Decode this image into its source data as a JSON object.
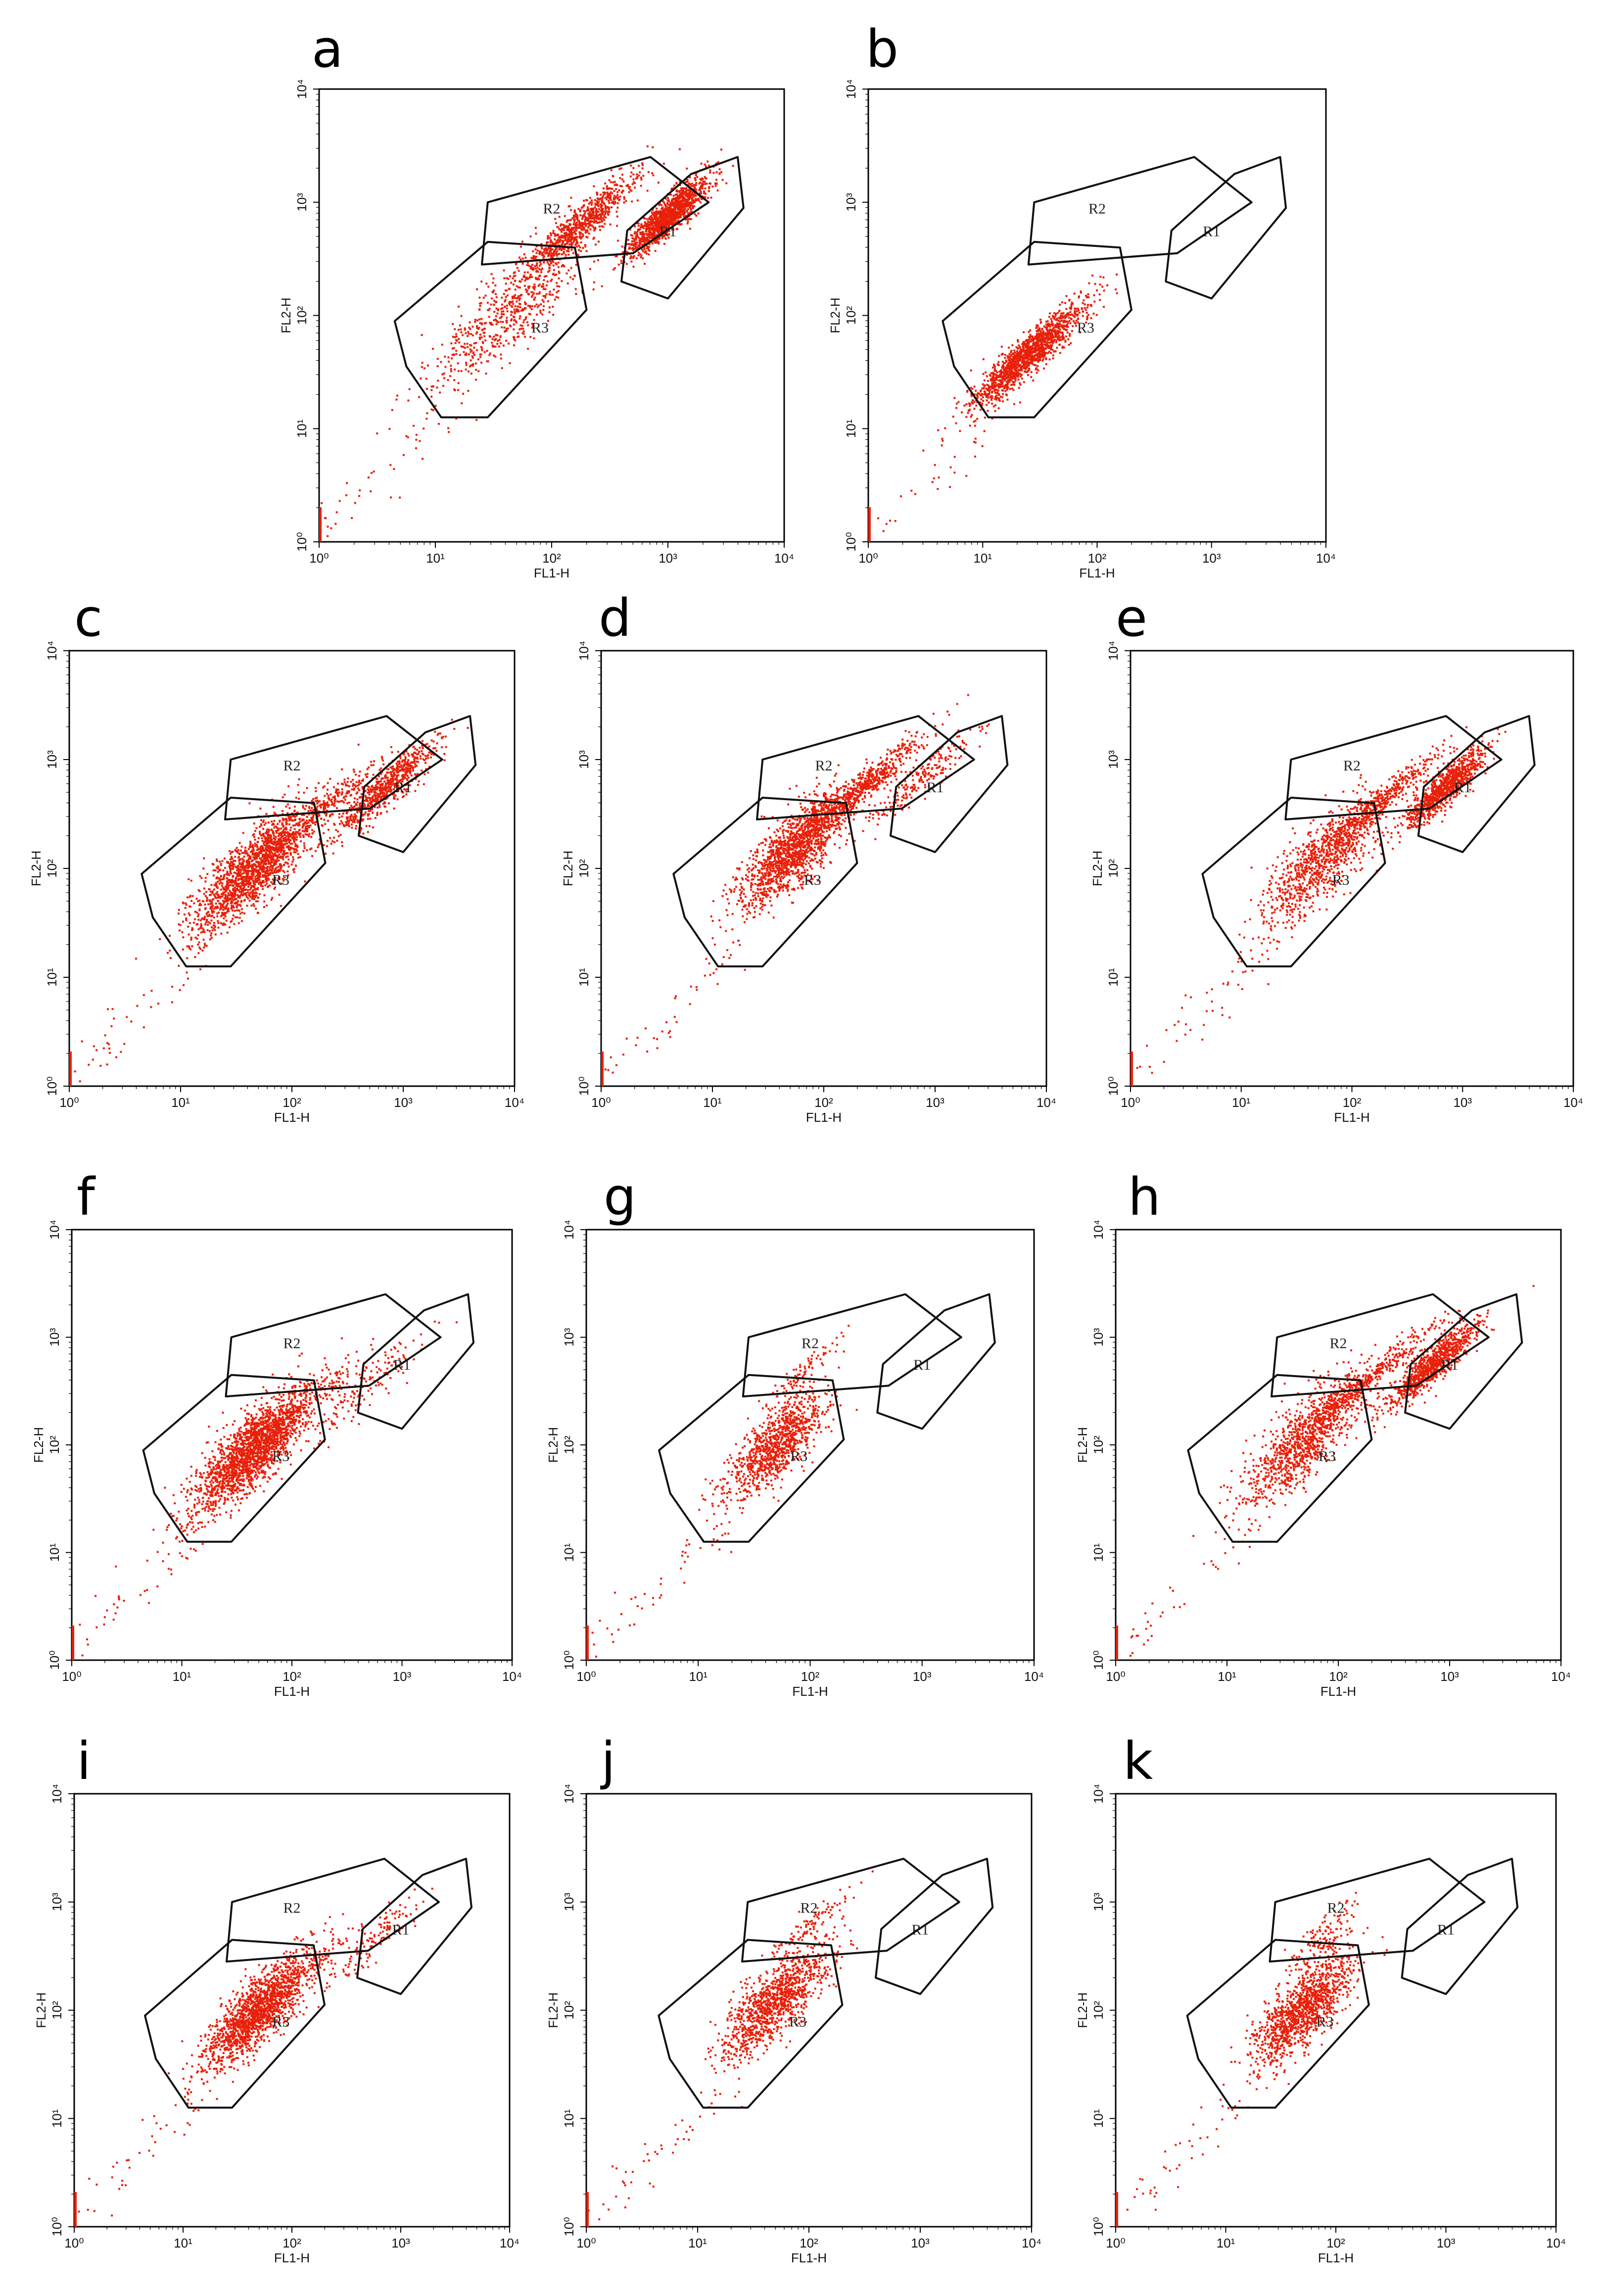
{
  "figure": {
    "description_panels": 11
  },
  "colors": {
    "dots": "#e8200a",
    "frame": "#000000",
    "gate": "#111111"
  },
  "chart_data": [
    {
      "type": "scatter",
      "panel": "a",
      "xlabel": "FL1-H",
      "ylabel": "FL2-H",
      "xscale": "log",
      "yscale": "log",
      "xlim": [
        1,
        10000
      ],
      "ylim": [
        1,
        10000
      ],
      "xticks": [
        "10⁰",
        "10¹",
        "10²",
        "10³",
        "10⁴"
      ],
      "yticks": [
        "10⁰",
        "10¹",
        "10²",
        "10³",
        "10⁴"
      ],
      "regions": [
        "R1",
        "R2",
        "R3"
      ],
      "clusters": [
        {
          "region": "R1",
          "cx": 1000,
          "cy": 750,
          "sx": 0.17,
          "sy": 0.15,
          "n": 1300
        },
        {
          "region": "R2",
          "cx": 170,
          "cy": 600,
          "sx": 0.25,
          "sy": 0.17,
          "n": 800
        },
        {
          "region": "R3",
          "cx": 40,
          "cy": 100,
          "sx": 0.32,
          "sy": 0.32,
          "n": 600
        }
      ]
    },
    {
      "type": "scatter",
      "panel": "b",
      "xlabel": "FL1-H",
      "ylabel": "FL2-H",
      "xscale": "log",
      "yscale": "log",
      "xlim": [
        1,
        10000
      ],
      "ylim": [
        1,
        10000
      ],
      "xticks": [
        "10⁰",
        "10¹",
        "10²",
        "10³",
        "10⁴"
      ],
      "yticks": [
        "10⁰",
        "10¹",
        "10²",
        "10³",
        "10⁴"
      ],
      "regions": [
        "R1",
        "R2",
        "R3"
      ],
      "clusters": [
        {
          "region": "R3",
          "cx": 25,
          "cy": 45,
          "sx": 0.24,
          "sy": 0.16,
          "n": 1400
        }
      ]
    },
    {
      "type": "scatter",
      "panel": "c",
      "xlabel": "FL1-H",
      "ylabel": "FL2-H",
      "xscale": "log",
      "yscale": "log",
      "xlim": [
        1,
        10000
      ],
      "ylim": [
        1,
        10000
      ],
      "xticks": [
        "10⁰",
        "10¹",
        "10²",
        "10³",
        "10⁴"
      ],
      "yticks": [
        "10⁰",
        "10¹",
        "10²",
        "10³",
        "10⁴"
      ],
      "regions": [
        "R1",
        "R2",
        "R3"
      ],
      "clusters": [
        {
          "region": "R3",
          "cx": 45,
          "cy": 100,
          "sx": 0.27,
          "sy": 0.3,
          "n": 1700
        },
        {
          "region": "R1",
          "cx": 700,
          "cy": 550,
          "sx": 0.22,
          "sy": 0.18,
          "n": 700
        },
        {
          "region": "R2",
          "cx": 170,
          "cy": 320,
          "sx": 0.25,
          "sy": 0.12,
          "n": 250
        }
      ]
    },
    {
      "type": "scatter",
      "panel": "d",
      "xlabel": "FL1-H",
      "ylabel": "FL2-H",
      "xscale": "log",
      "yscale": "log",
      "xlim": [
        1,
        10000
      ],
      "ylim": [
        1,
        10000
      ],
      "xticks": [
        "10⁰",
        "10¹",
        "10²",
        "10³",
        "10⁴"
      ],
      "yticks": [
        "10⁰",
        "10¹",
        "10²",
        "10³",
        "10⁴"
      ],
      "regions": [
        "R1",
        "R2",
        "R3"
      ],
      "clusters": [
        {
          "region": "R3",
          "cx": 55,
          "cy": 150,
          "sx": 0.25,
          "sy": 0.32,
          "n": 1400
        },
        {
          "region": "R2",
          "cx": 200,
          "cy": 500,
          "sx": 0.3,
          "sy": 0.14,
          "n": 700
        },
        {
          "region": "R1",
          "cx": 800,
          "cy": 700,
          "sx": 0.25,
          "sy": 0.15,
          "n": 200
        }
      ]
    },
    {
      "type": "scatter",
      "panel": "e",
      "xlabel": "FL1-H",
      "ylabel": "FL2-H",
      "xscale": "log",
      "yscale": "log",
      "xlim": [
        1,
        10000
      ],
      "ylim": [
        1,
        10000
      ],
      "xticks": [
        "10⁰",
        "10¹",
        "10²",
        "10³",
        "10⁴"
      ],
      "yticks": [
        "10⁰",
        "10¹",
        "10²",
        "10³",
        "10⁴"
      ],
      "regions": [
        "R1",
        "R2",
        "R3"
      ],
      "clusters": [
        {
          "region": "R1",
          "cx": 700,
          "cy": 550,
          "sx": 0.18,
          "sy": 0.15,
          "n": 900
        },
        {
          "region": "R3",
          "cx": 55,
          "cy": 120,
          "sx": 0.27,
          "sy": 0.33,
          "n": 900
        },
        {
          "region": "R2",
          "cx": 180,
          "cy": 400,
          "sx": 0.28,
          "sy": 0.12,
          "n": 400
        }
      ]
    },
    {
      "type": "scatter",
      "panel": "f",
      "xlabel": "FL1-H",
      "ylabel": "FL2-H",
      "xscale": "log",
      "yscale": "log",
      "xlim": [
        1,
        10000
      ],
      "ylim": [
        1,
        10000
      ],
      "xticks": [
        "10⁰",
        "10¹",
        "10²",
        "10³",
        "10⁴"
      ],
      "yticks": [
        "10⁰",
        "10¹",
        "10²",
        "10³",
        "10⁴"
      ],
      "regions": [
        "R1",
        "R2",
        "R3"
      ],
      "clusters": [
        {
          "region": "R3",
          "cx": 45,
          "cy": 90,
          "sx": 0.27,
          "sy": 0.3,
          "n": 2000
        },
        {
          "region": "R1",
          "cx": 500,
          "cy": 350,
          "sx": 0.25,
          "sy": 0.2,
          "n": 150
        },
        {
          "region": "R2",
          "cx": 170,
          "cy": 300,
          "sx": 0.25,
          "sy": 0.12,
          "n": 100
        }
      ]
    },
    {
      "type": "scatter",
      "panel": "g",
      "xlabel": "FL1-H",
      "ylabel": "FL2-H",
      "xscale": "log",
      "yscale": "log",
      "xlim": [
        1,
        10000
      ],
      "ylim": [
        1,
        10000
      ],
      "xticks": [
        "10⁰",
        "10¹",
        "10²",
        "10³",
        "10⁴"
      ],
      "yticks": [
        "10⁰",
        "10¹",
        "10²",
        "10³",
        "10⁴"
      ],
      "regions": [
        "R1",
        "R2",
        "R3"
      ],
      "clusters": [
        {
          "region": "R3",
          "cx": 50,
          "cy": 100,
          "sx": 0.22,
          "sy": 0.3,
          "n": 1000
        },
        {
          "region": "R2",
          "cx": 90,
          "cy": 500,
          "sx": 0.18,
          "sy": 0.1,
          "n": 80
        }
      ]
    },
    {
      "type": "scatter",
      "panel": "h",
      "xlabel": "FL1-H",
      "ylabel": "FL2-H",
      "xscale": "log",
      "yscale": "log",
      "xlim": [
        1,
        10000
      ],
      "ylim": [
        1,
        10000
      ],
      "xticks": [
        "10⁰",
        "10¹",
        "10²",
        "10³",
        "10⁴"
      ],
      "yticks": [
        "10⁰",
        "10¹",
        "10²",
        "10³",
        "10⁴"
      ],
      "regions": [
        "R1",
        "R2",
        "R3"
      ],
      "clusters": [
        {
          "region": "R1",
          "cx": 700,
          "cy": 550,
          "sx": 0.2,
          "sy": 0.15,
          "n": 900
        },
        {
          "region": "R3",
          "cx": 50,
          "cy": 110,
          "sx": 0.27,
          "sy": 0.33,
          "n": 1000
        },
        {
          "region": "R2",
          "cx": 180,
          "cy": 400,
          "sx": 0.3,
          "sy": 0.12,
          "n": 400
        }
      ]
    },
    {
      "type": "scatter",
      "panel": "i",
      "xlabel": "FL1-H",
      "ylabel": "FL2-H",
      "xscale": "log",
      "yscale": "log",
      "xlim": [
        1,
        10000
      ],
      "ylim": [
        1,
        10000
      ],
      "xticks": [
        "10⁰",
        "10¹",
        "10²",
        "10³",
        "10⁴"
      ],
      "yticks": [
        "10⁰",
        "10¹",
        "10²",
        "10³",
        "10⁴"
      ],
      "regions": [
        "R1",
        "R2",
        "R3"
      ],
      "clusters": [
        {
          "region": "R3",
          "cx": 50,
          "cy": 100,
          "sx": 0.24,
          "sy": 0.28,
          "n": 1600
        },
        {
          "region": "R1",
          "cx": 500,
          "cy": 400,
          "sx": 0.25,
          "sy": 0.2,
          "n": 130
        },
        {
          "region": "R2",
          "cx": 180,
          "cy": 300,
          "sx": 0.2,
          "sy": 0.1,
          "n": 60
        }
      ]
    },
    {
      "type": "scatter",
      "panel": "j",
      "xlabel": "FL1-H",
      "ylabel": "FL2-H",
      "xscale": "log",
      "yscale": "log",
      "xlim": [
        1,
        10000
      ],
      "ylim": [
        1,
        10000
      ],
      "xticks": [
        "10⁰",
        "10¹",
        "10²",
        "10³",
        "10⁴"
      ],
      "yticks": [
        "10⁰",
        "10¹",
        "10²",
        "10³",
        "10⁴"
      ],
      "regions": [
        "R1",
        "R2",
        "R3"
      ],
      "clusters": [
        {
          "region": "R3",
          "cx": 50,
          "cy": 120,
          "sx": 0.24,
          "sy": 0.3,
          "n": 1100
        },
        {
          "region": "R2",
          "cx": 100,
          "cy": 600,
          "sx": 0.22,
          "sy": 0.1,
          "n": 90
        }
      ]
    },
    {
      "type": "scatter",
      "panel": "k",
      "xlabel": "FL1-H",
      "ylabel": "FL2-H",
      "xscale": "log",
      "yscale": "log",
      "xlim": [
        1,
        10000
      ],
      "ylim": [
        1,
        10000
      ],
      "xticks": [
        "10⁰",
        "10¹",
        "10²",
        "10³",
        "10⁴"
      ],
      "yticks": [
        "10⁰",
        "10¹",
        "10²",
        "10³",
        "10⁴"
      ],
      "regions": [
        "R1",
        "R2",
        "R3"
      ],
      "clusters": [
        {
          "region": "R3",
          "cx": 50,
          "cy": 100,
          "sx": 0.22,
          "sy": 0.28,
          "n": 1200
        },
        {
          "region": "R2",
          "cx": 80,
          "cy": 450,
          "sx": 0.15,
          "sy": 0.2,
          "n": 150
        }
      ]
    }
  ]
}
